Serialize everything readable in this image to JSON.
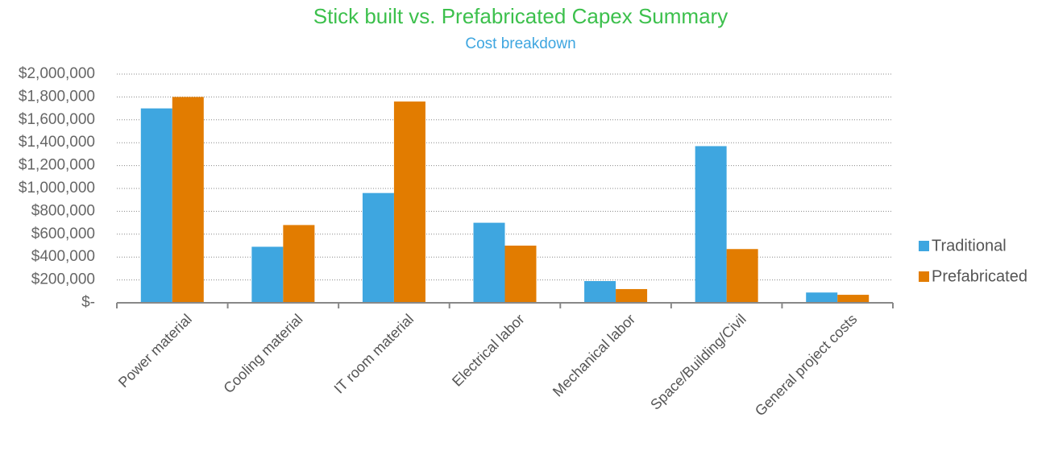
{
  "chart_data": {
    "type": "bar",
    "title": "Stick built vs. Prefabricated Capex Summary",
    "subtitle": "Cost breakdown",
    "categories": [
      "Power material",
      "Cooling material",
      "IT room material",
      "Electrical labor",
      "Mechanical labor",
      "Space/Building/Civil",
      "General project costs"
    ],
    "series": [
      {
        "name": "Traditional",
        "color": "#3ea6e0",
        "values": [
          1700000,
          490000,
          960000,
          700000,
          190000,
          1370000,
          90000
        ]
      },
      {
        "name": "Prefabricated",
        "color": "#e27c00",
        "values": [
          1800000,
          680000,
          1760000,
          500000,
          120000,
          470000,
          70000
        ]
      }
    ],
    "ylim": [
      0,
      2000000
    ],
    "yticks": [
      {
        "value": 0,
        "label": "$-"
      },
      {
        "value": 200000,
        "label": "$200,000"
      },
      {
        "value": 400000,
        "label": "$400,000"
      },
      {
        "value": 600000,
        "label": "$600,000"
      },
      {
        "value": 800000,
        "label": "$800,000"
      },
      {
        "value": 1000000,
        "label": "$1,000,000"
      },
      {
        "value": 1200000,
        "label": "$1,200,000"
      },
      {
        "value": 1400000,
        "label": "$1,400,000"
      },
      {
        "value": 1600000,
        "label": "$1,600,000"
      },
      {
        "value": 1800000,
        "label": "$1,800,000"
      },
      {
        "value": 2000000,
        "label": "$2,000,000"
      }
    ],
    "grid": true,
    "legend": "right"
  }
}
